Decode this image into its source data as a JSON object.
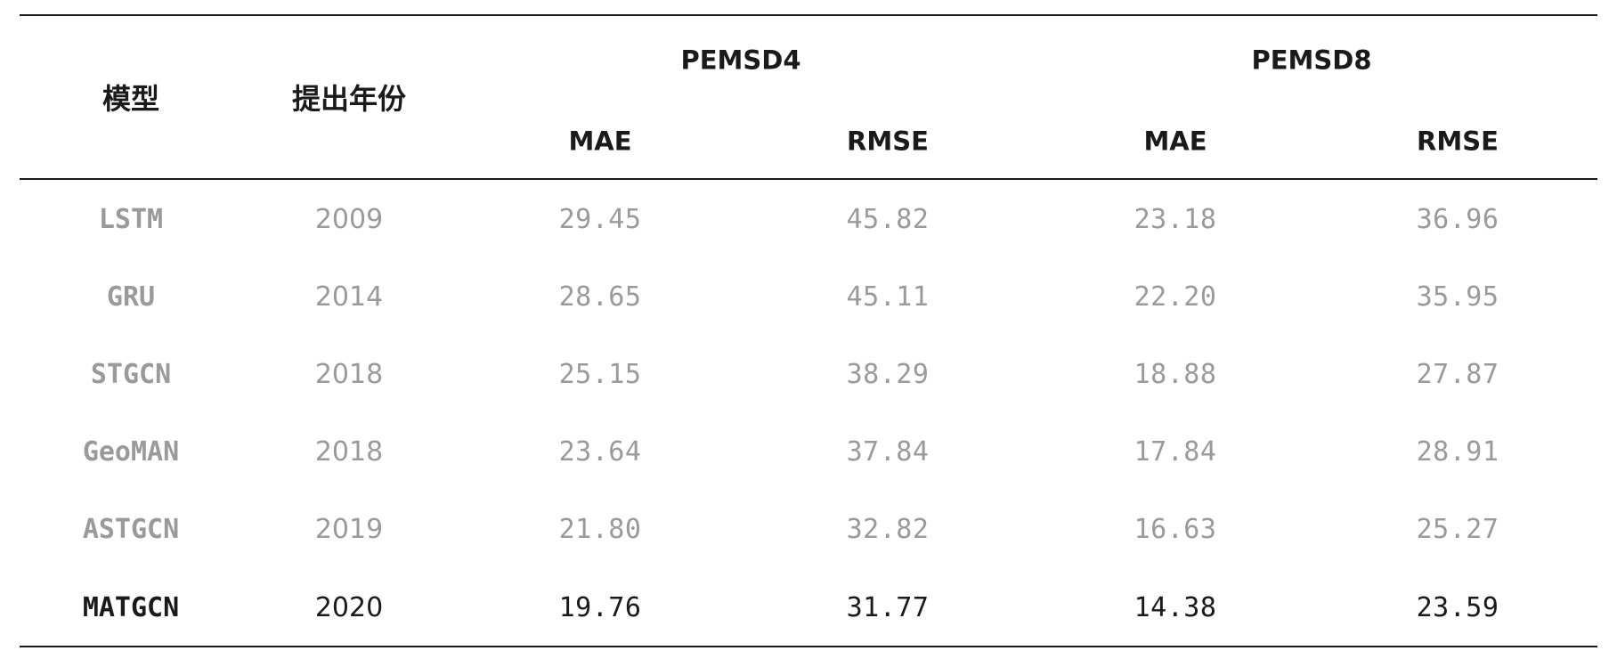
{
  "colors": {
    "rule": "#1a1a1a",
    "header_text": "#1a1a1a",
    "baseline_text": "#9a9a9a",
    "highlight_text": "#1a1a1a"
  },
  "header": {
    "model_label": "模型",
    "year_label": "提出年份",
    "groups": [
      {
        "name": "PEMSD4",
        "sub": [
          "MAE",
          "RMSE"
        ]
      },
      {
        "name": "PEMSD8",
        "sub": [
          "MAE",
          "RMSE"
        ]
      }
    ]
  },
  "rows": [
    {
      "model": "LSTM",
      "year": "2009",
      "values": [
        "29.45",
        "45.82",
        "23.18",
        "36.96"
      ],
      "highlight": false
    },
    {
      "model": "GRU",
      "year": "2014",
      "values": [
        "28.65",
        "45.11",
        "22.20",
        "35.95"
      ],
      "highlight": false
    },
    {
      "model": "STGCN",
      "year": "2018",
      "values": [
        "25.15",
        "38.29",
        "18.88",
        "27.87"
      ],
      "highlight": false
    },
    {
      "model": "GeoMAN",
      "year": "2018",
      "values": [
        "23.64",
        "37.84",
        "17.84",
        "28.91"
      ],
      "highlight": false
    },
    {
      "model": "ASTGCN",
      "year": "2019",
      "values": [
        "21.80",
        "32.82",
        "16.63",
        "25.27"
      ],
      "highlight": false
    },
    {
      "model": "MATGCN",
      "year": "2020",
      "values": [
        "19.76",
        "31.77",
        "14.38",
        "23.59"
      ],
      "highlight": true
    }
  ]
}
